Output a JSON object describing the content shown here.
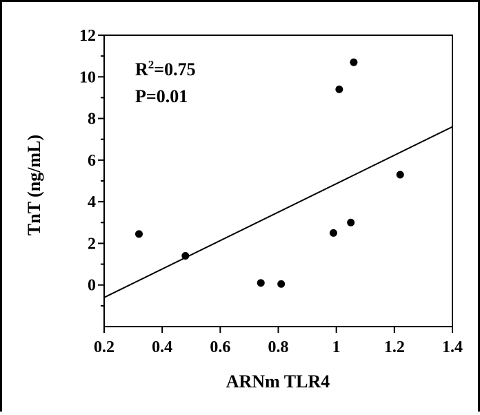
{
  "chart_data": {
    "type": "scatter",
    "xlabel": "ARNm TLR4",
    "ylabel": "TnT (ng/mL)",
    "xlim": [
      0.2,
      1.4
    ],
    "ylim": [
      -2,
      12
    ],
    "x_ticks": [
      0.2,
      0.4,
      0.6,
      0.8,
      1,
      1.2,
      1.4
    ],
    "x_tick_labels": [
      "0.2",
      "0.4",
      "0.6",
      "0.8",
      "1",
      "1.2",
      "1.4"
    ],
    "y_ticks": [
      0,
      2,
      4,
      6,
      8,
      10,
      12
    ],
    "y_tick_labels": [
      "0",
      "2",
      "4",
      "6",
      "8",
      "10",
      "12"
    ],
    "grid": false,
    "points": [
      {
        "x": 0.32,
        "y": 2.45
      },
      {
        "x": 0.48,
        "y": 1.4
      },
      {
        "x": 0.74,
        "y": 0.1
      },
      {
        "x": 0.81,
        "y": 0.05
      },
      {
        "x": 0.99,
        "y": 2.5
      },
      {
        "x": 1.01,
        "y": 9.4
      },
      {
        "x": 1.05,
        "y": 3.0
      },
      {
        "x": 1.06,
        "y": 10.7
      },
      {
        "x": 1.22,
        "y": 5.3
      }
    ],
    "trendline": {
      "x": [
        0.2,
        1.4
      ],
      "y": [
        -0.6,
        7.6
      ]
    },
    "annotations": [
      "R²=0.75",
      "P=0.01"
    ]
  }
}
